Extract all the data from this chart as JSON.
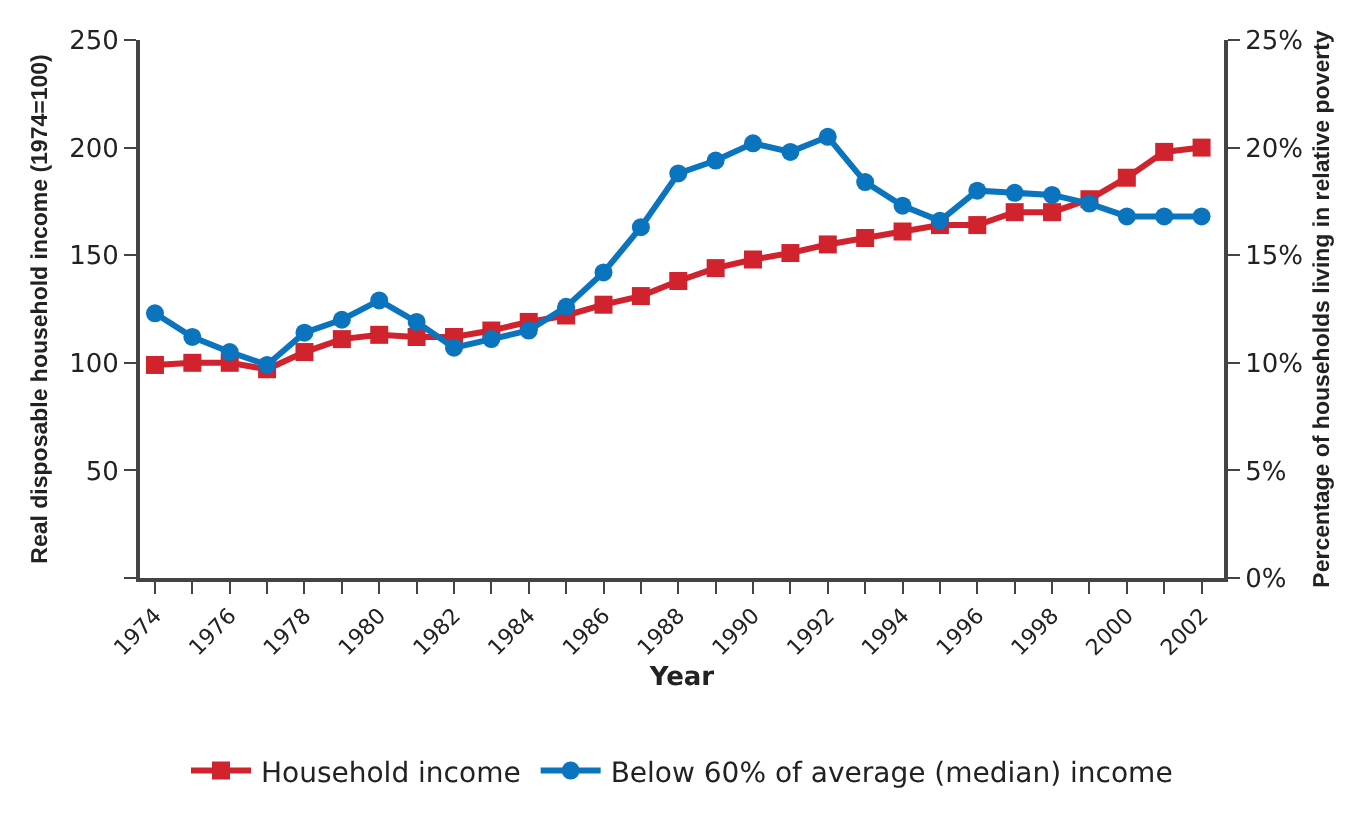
{
  "chart_data": {
    "type": "line",
    "xlabel": "Year",
    "ylabel": "Real disposable household income (1974=100)",
    "y2label": "Percentage of households living in relative poverty",
    "x": [
      1974,
      1975,
      1976,
      1977,
      1978,
      1979,
      1980,
      1981,
      1982,
      1983,
      1984,
      1985,
      1986,
      1987,
      1988,
      1989,
      1990,
      1991,
      1992,
      1993,
      1994,
      1995,
      1996,
      1997,
      1998,
      1999,
      2000,
      2001,
      2002
    ],
    "series": [
      {
        "name": "Household income",
        "color": "#d0232d",
        "marker": "square",
        "values": [
          99,
          100,
          100,
          97,
          105,
          111,
          113,
          112,
          112,
          115,
          119,
          122,
          127,
          131,
          138,
          144,
          148,
          151,
          155,
          158,
          161,
          164,
          164,
          170,
          170,
          176,
          186,
          198,
          200
        ]
      },
      {
        "name": "Below 60% of average (median) income",
        "color": "#0a74bf",
        "marker": "circle",
        "axis": "y2",
        "values": [
          12.3,
          11.2,
          10.5,
          9.9,
          11.4,
          12.0,
          12.9,
          11.9,
          10.7,
          11.1,
          11.5,
          12.6,
          14.2,
          16.3,
          18.8,
          19.4,
          20.2,
          19.8,
          20.5,
          18.4,
          17.3,
          16.6,
          18.0,
          17.9,
          17.8,
          17.4,
          16.8,
          16.8,
          16.8
        ]
      }
    ],
    "xlim": [
      1973.6,
      2002.6
    ],
    "xticks": [
      1974,
      {
        "value": 1975,
        "label": null
      },
      1976,
      {
        "value": 1977,
        "label": null
      },
      1978,
      {
        "value": 1979,
        "label": null
      },
      1980,
      {
        "value": 1981,
        "label": null
      },
      1982,
      {
        "value": 1983,
        "label": null
      },
      1984,
      {
        "value": 1985,
        "label": null
      },
      1986,
      {
        "value": 1987,
        "label": null
      },
      1988,
      {
        "value": 1989,
        "label": null
      },
      1990,
      {
        "value": 1991,
        "label": null
      },
      1992,
      {
        "value": 1993,
        "label": null
      },
      1994,
      {
        "value": 1995,
        "label": null
      },
      1996,
      {
        "value": 1997,
        "label": null
      },
      1998,
      {
        "value": 1999,
        "label": null
      },
      2000,
      {
        "value": 2001,
        "label": null
      },
      2002
    ],
    "ylim": [
      0,
      250
    ],
    "yticks": [
      {
        "value": 0,
        "label": null
      },
      50,
      100,
      150,
      200,
      250
    ],
    "y2lim": [
      0,
      25
    ],
    "y2ticks": [
      {
        "value": 0,
        "label": "0%"
      },
      {
        "value": 5,
        "label": "5%"
      },
      {
        "value": 10,
        "label": "10%"
      },
      {
        "value": 15,
        "label": "15%"
      },
      {
        "value": 20,
        "label": "20%"
      },
      {
        "value": 25,
        "label": "25%"
      }
    ],
    "legend": "bottom",
    "line_style": "solid"
  }
}
